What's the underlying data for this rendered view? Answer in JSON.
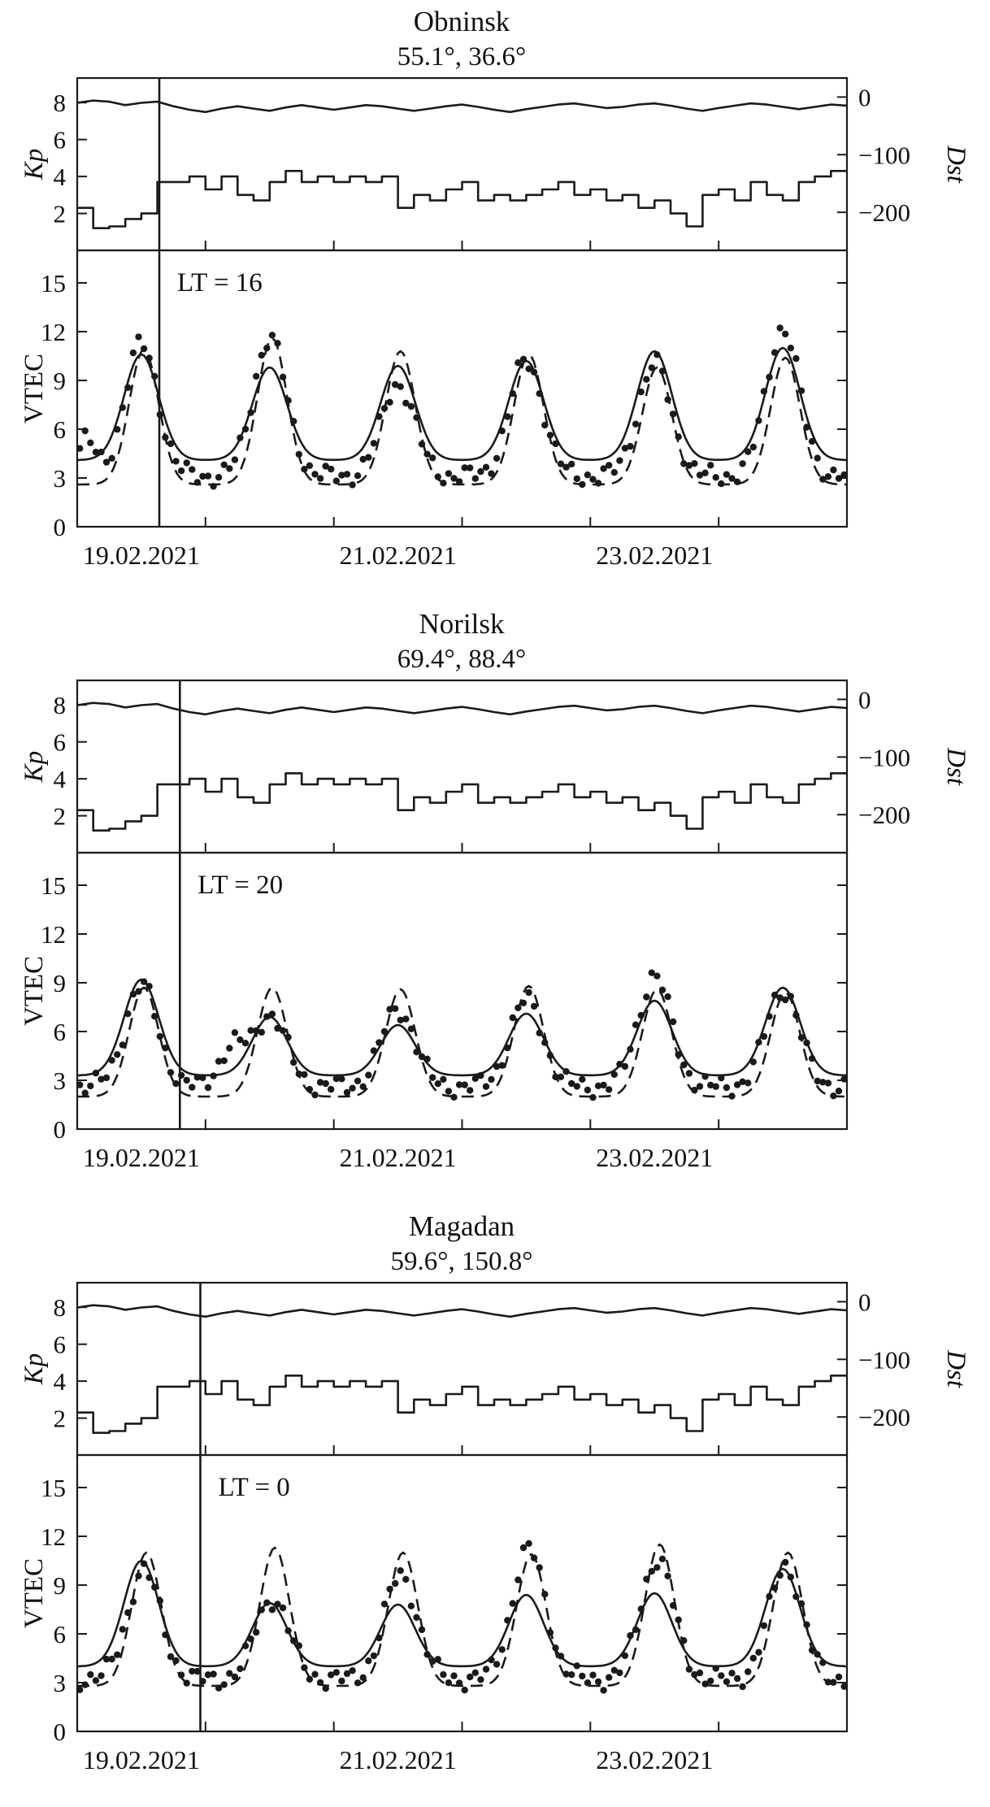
{
  "x_axis": {
    "range_days": [
      0,
      6
    ],
    "day_ticks": [
      0,
      1,
      2,
      3,
      4,
      5,
      6
    ],
    "tick_labels": [
      "19.02.2021",
      "21.02.2021",
      "23.02.2021"
    ],
    "tick_label_days": [
      0.5,
      2.5,
      4.5
    ]
  },
  "kp_axis": {
    "label": "Kp",
    "ticks": [
      "8",
      "6",
      "4",
      "2"
    ],
    "values": [
      8,
      6,
      4,
      2
    ],
    "range": [
      0,
      9.33
    ]
  },
  "dst_axis": {
    "label": "Dst",
    "ticks": [
      "0",
      "−100",
      "−200"
    ],
    "values": [
      0,
      -100,
      -200
    ],
    "range": [
      -266,
      33
    ]
  },
  "vtec_axis": {
    "label": "VTEC",
    "ticks": [
      "15",
      "12",
      "9",
      "6",
      "3",
      "0"
    ],
    "values": [
      15,
      12,
      9,
      6,
      3,
      0
    ],
    "range": [
      0,
      17
    ]
  },
  "geomagnetic": {
    "kp_3h": [
      2.3,
      1.2,
      1.3,
      1.7,
      2.0,
      3.7,
      3.7,
      4.0,
      3.3,
      4.0,
      3.0,
      2.7,
      3.7,
      4.3,
      3.7,
      4.0,
      3.7,
      4.0,
      3.7,
      4.0,
      2.3,
      3.0,
      2.7,
      3.3,
      3.7,
      2.7,
      3.0,
      2.7,
      3.0,
      3.3,
      3.7,
      3.0,
      3.3,
      2.7,
      3.0,
      2.3,
      2.7,
      2.0,
      1.3,
      3.0,
      3.3,
      2.7,
      3.7,
      3.0,
      2.7,
      3.7,
      4.0,
      4.3
    ],
    "dst_3h": [
      -10,
      -6,
      -8,
      -14,
      -10,
      -8,
      -16,
      -22,
      -26,
      -20,
      -16,
      -20,
      -24,
      -18,
      -14,
      -18,
      -22,
      -18,
      -14,
      -16,
      -20,
      -24,
      -20,
      -16,
      -13,
      -17,
      -22,
      -26,
      -21,
      -17,
      -13,
      -11,
      -15,
      -19,
      -17,
      -13,
      -11,
      -15,
      -20,
      -24,
      -19,
      -15,
      -11,
      -13,
      -17,
      -21,
      -17,
      -13,
      -15
    ]
  },
  "chart_data": [
    {
      "type": "line",
      "station": "Obninsk",
      "coordinates": "55.1°, 36.6°",
      "lt_label": "LT = 16",
      "vline_day": 0.64,
      "series": {
        "dots": {
          "style": "scatter-dots",
          "daily_peaks": [
            11.2,
            11.6,
            8.8,
            10.2,
            10.0,
            12.2
          ],
          "baseline": 3.1,
          "peak_center": 0.5,
          "width": 0.13,
          "extra_bumps": [
            {
              "center": 0.07,
              "amp": 2.2,
              "width": 0.07
            }
          ]
        },
        "solid": {
          "style": "solid-line",
          "daily_peaks": [
            10.6,
            9.8,
            9.9,
            10.2,
            10.8,
            11.0
          ],
          "baseline": 4.1,
          "peak_center": 0.5,
          "width": 0.135
        },
        "dashed": {
          "style": "dashed-line",
          "daily_peaks": [
            10.9,
            11.6,
            10.8,
            10.6,
            9.8,
            10.4
          ],
          "baseline": 2.6,
          "peak_center": 0.52,
          "width": 0.115
        }
      }
    },
    {
      "type": "line",
      "station": "Norilsk",
      "coordinates": "69.4°, 88.4°",
      "lt_label": "LT = 20",
      "vline_day": 0.8,
      "series": {
        "dots": {
          "style": "scatter-dots",
          "daily_peaks": [
            8.8,
            7.0,
            7.4,
            7.9,
            9.4,
            8.6
          ],
          "baseline": 2.6,
          "peak_center": 0.5,
          "width": 0.13,
          "extra_bumps": [
            {
              "center": 1.2,
              "amp": 2.3,
              "width": 0.1
            }
          ]
        },
        "solid": {
          "style": "solid-line",
          "daily_peaks": [
            9.2,
            6.9,
            6.4,
            7.1,
            7.9,
            8.7
          ],
          "baseline": 3.3,
          "peak_center": 0.5,
          "width": 0.135
        },
        "dashed": {
          "style": "dashed-line",
          "daily_peaks": [
            8.7,
            8.7,
            8.6,
            8.8,
            8.6,
            8.4
          ],
          "baseline": 2.0,
          "peak_center": 0.52,
          "width": 0.115
        }
      }
    },
    {
      "type": "line",
      "station": "Magadan",
      "coordinates": "59.6°, 150.8°",
      "lt_label": "LT = 0",
      "vline_day": 0.96,
      "series": {
        "dots": {
          "style": "scatter-dots",
          "daily_peaks": [
            9.9,
            8.2,
            9.6,
            11.2,
            10.6,
            10.2
          ],
          "baseline": 3.2,
          "peak_center": 0.52,
          "width": 0.13
        },
        "solid": {
          "style": "solid-line",
          "daily_peaks": [
            10.5,
            7.9,
            7.8,
            8.4,
            8.5,
            10.0
          ],
          "baseline": 4.0,
          "peak_center": 0.5,
          "width": 0.135
        },
        "dashed": {
          "style": "dashed-line",
          "daily_peaks": [
            11.0,
            11.3,
            11.0,
            10.9,
            11.5,
            11.0
          ],
          "baseline": 2.8,
          "peak_center": 0.54,
          "width": 0.115
        }
      }
    }
  ]
}
